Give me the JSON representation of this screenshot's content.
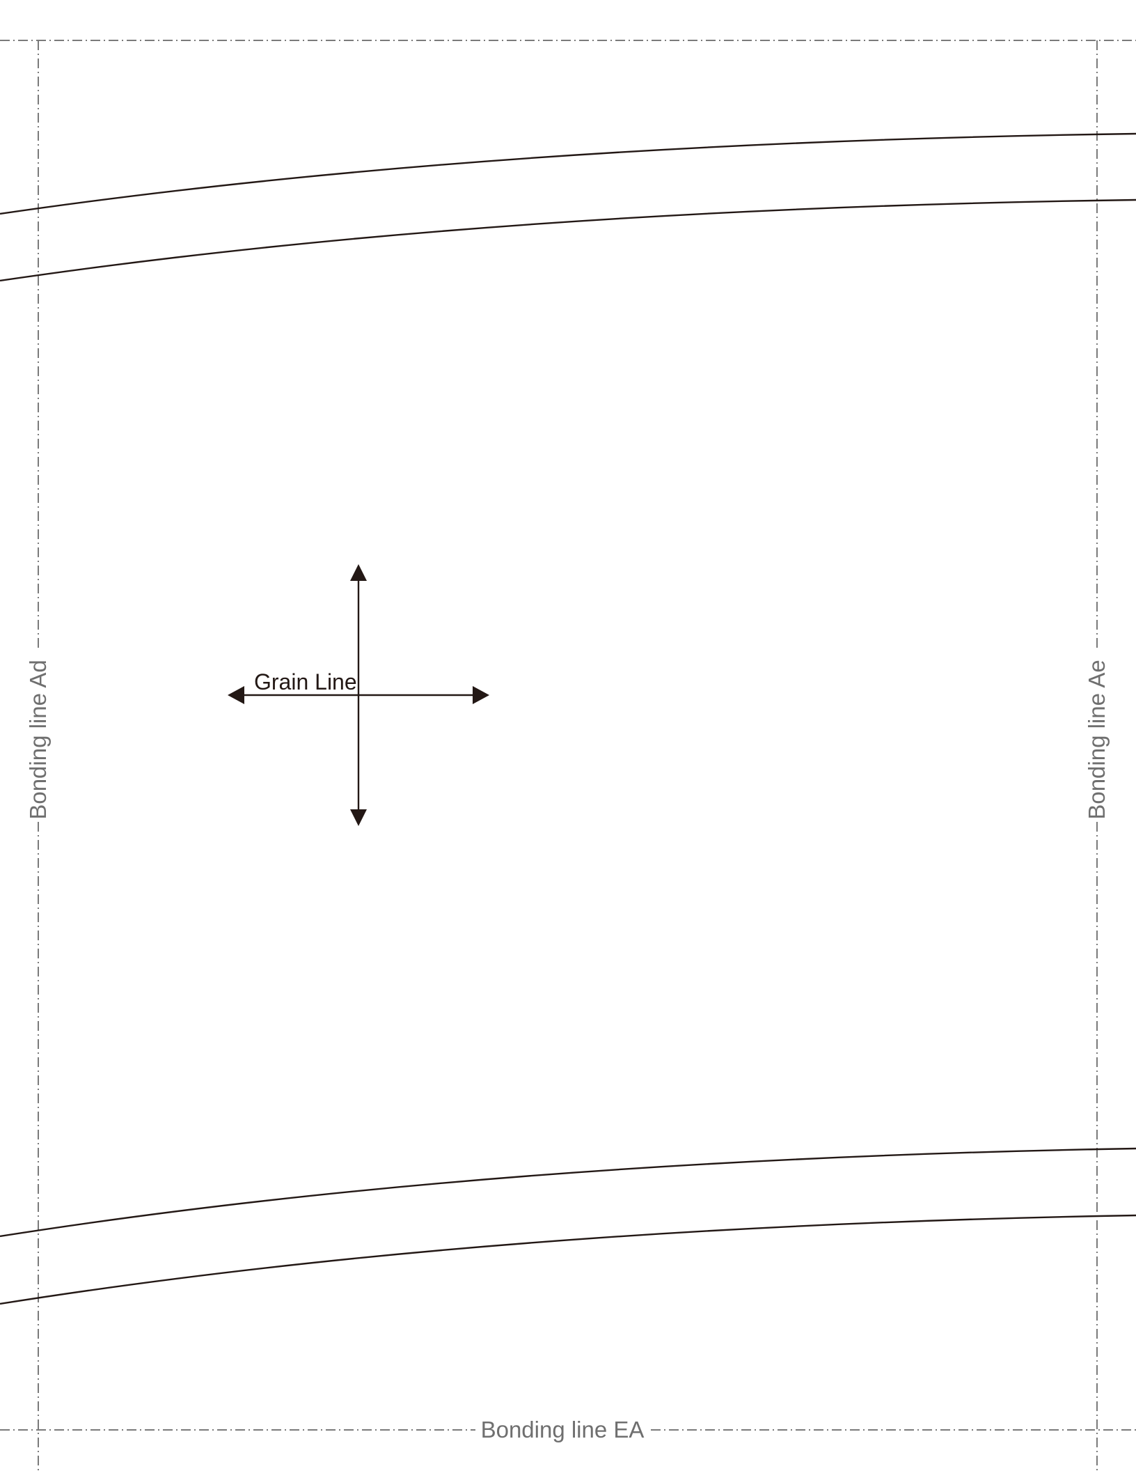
{
  "labels": {
    "bonding_left": "Bonding line Ad",
    "bonding_right": "Bonding line Ae",
    "bonding_bottom": "Bonding line EA",
    "grain_line": "Grain Line"
  },
  "icons": {
    "grain_arrow": "four-way-arrow-icon"
  },
  "colors": {
    "pattern_line": "#231815",
    "bonding_line": "#7a7a7a",
    "bonding_text": "#6f6f6f",
    "background": "#ffffff"
  }
}
